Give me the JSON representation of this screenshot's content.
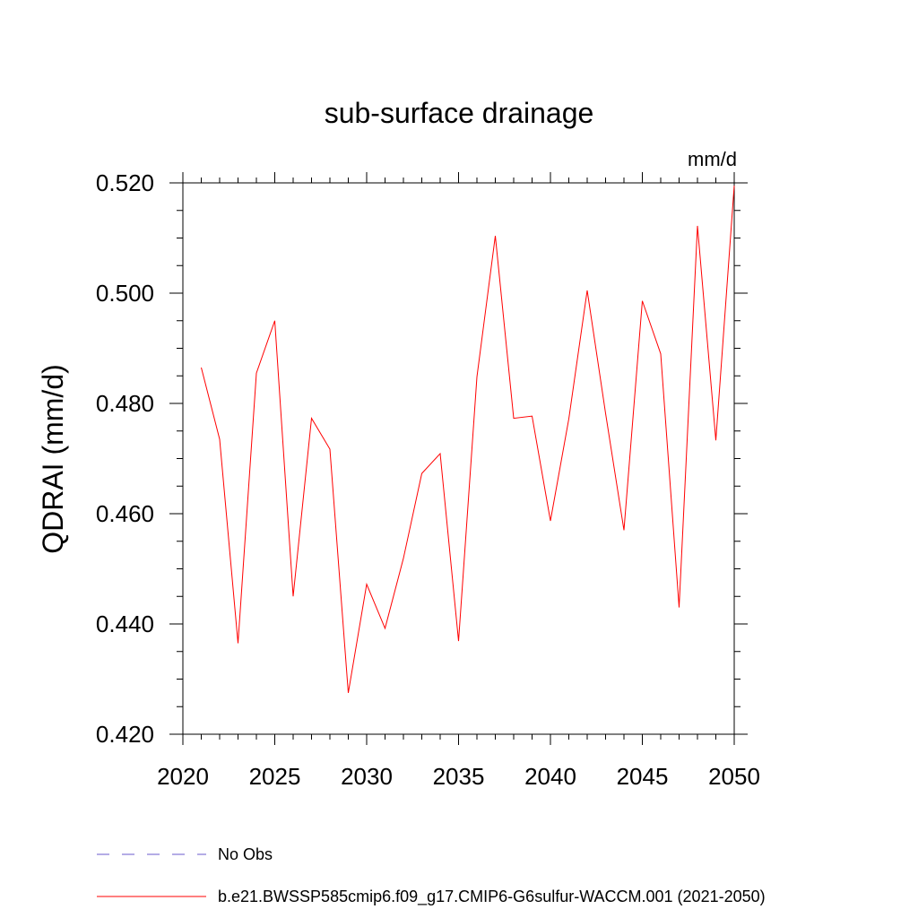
{
  "chart_data": {
    "type": "line",
    "title": "sub-surface drainage",
    "units_label": "mm/d",
    "ylabel": "QDRAI  (mm/d)",
    "xlabel": "",
    "xlim": [
      2020,
      2050
    ],
    "ylim": [
      0.42,
      0.52
    ],
    "x_ticks": [
      2020,
      2025,
      2030,
      2035,
      2040,
      2045,
      2050
    ],
    "x_tick_labels": [
      "2020",
      "2025",
      "2030",
      "2035",
      "2040",
      "2045",
      "2050"
    ],
    "y_ticks": [
      0.42,
      0.44,
      0.46,
      0.48,
      0.5,
      0.52
    ],
    "y_tick_labels": [
      "0.420",
      "0.440",
      "0.460",
      "0.480",
      "0.500",
      "0.520"
    ],
    "x": [
      2021,
      2022,
      2023,
      2024,
      2025,
      2026,
      2027,
      2028,
      2029,
      2030,
      2031,
      2032,
      2033,
      2034,
      2035,
      2036,
      2037,
      2038,
      2039,
      2040,
      2041,
      2042,
      2043,
      2044,
      2045,
      2046,
      2047,
      2048,
      2049,
      2050
    ],
    "series": [
      {
        "name": "b.e21.BWSSP585cmip6.f09_g17.CMIP6-G6sulfur-WACCM.001 (2021-2050)",
        "color": "#ff0000",
        "values": [
          0.4865,
          0.4735,
          0.4365,
          0.4855,
          0.495,
          0.445,
          0.4773,
          0.4717,
          0.4275,
          0.4472,
          0.4392,
          0.4519,
          0.4673,
          0.4709,
          0.4369,
          0.4848,
          0.5104,
          0.4773,
          0.4777,
          0.4587,
          0.4772,
          0.5005,
          0.4782,
          0.457,
          0.4986,
          0.489,
          0.443,
          0.5122,
          0.4733,
          0.5195
        ]
      }
    ],
    "legend": {
      "placement": "bottom-left",
      "entries": [
        {
          "label": "No Obs",
          "color": "#6a5acd",
          "style": "dashed"
        },
        {
          "label": "b.e21.BWSSP585cmip6.f09_g17.CMIP6-G6sulfur-WACCM.001 (2021-2050)",
          "color": "#ff0000",
          "style": "solid"
        }
      ]
    },
    "grid": false
  }
}
